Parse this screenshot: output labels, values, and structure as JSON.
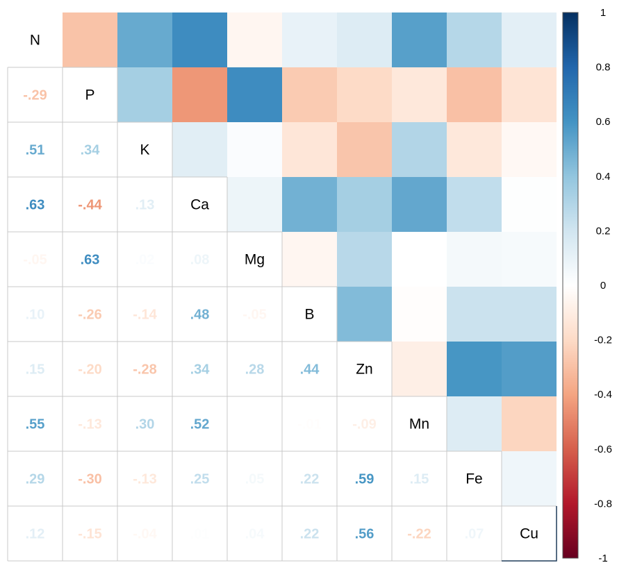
{
  "chart_data": {
    "type": "heatmap",
    "title": "",
    "variables": [
      "N",
      "P",
      "K",
      "Ca",
      "Mg",
      "B",
      "Zn",
      "Mn",
      "Fe",
      "Cu"
    ],
    "matrix": [
      [
        1.0,
        -0.29,
        0.51,
        0.63,
        -0.05,
        0.1,
        0.15,
        0.55,
        0.29,
        0.12
      ],
      [
        -0.29,
        1.0,
        0.34,
        -0.44,
        0.63,
        -0.26,
        -0.2,
        -0.13,
        -0.3,
        -0.15
      ],
      [
        0.51,
        0.34,
        1.0,
        0.13,
        0.02,
        -0.14,
        -0.28,
        0.3,
        -0.13,
        -0.04
      ],
      [
        0.63,
        -0.44,
        0.13,
        1.0,
        0.08,
        0.48,
        0.34,
        0.52,
        0.25,
        0.01
      ],
      [
        -0.05,
        0.63,
        0.02,
        0.08,
        1.0,
        -0.05,
        0.28,
        0.0,
        0.05,
        0.04
      ],
      [
        0.1,
        -0.26,
        -0.14,
        0.48,
        -0.05,
        1.0,
        0.44,
        -0.01,
        0.22,
        0.22
      ],
      [
        0.15,
        -0.2,
        -0.28,
        0.34,
        0.28,
        0.44,
        1.0,
        -0.09,
        0.59,
        0.56
      ],
      [
        0.55,
        -0.13,
        0.3,
        0.52,
        0.0,
        -0.01,
        -0.09,
        1.0,
        0.15,
        -0.22
      ],
      [
        0.29,
        -0.3,
        -0.13,
        0.25,
        0.05,
        0.22,
        0.59,
        0.15,
        1.0,
        0.07
      ],
      [
        0.12,
        -0.15,
        -0.04,
        0.01,
        0.04,
        0.22,
        0.56,
        -0.22,
        0.07,
        1.0
      ]
    ],
    "lower_triangle": "number",
    "upper_triangle": "shade",
    "diagonal": "variable-name",
    "color_scale": {
      "range": [
        -1,
        1
      ],
      "ticks": [
        "1",
        "0.8",
        "0.6",
        "0.4",
        "0.2",
        "0",
        "-0.2",
        "-0.4",
        "-0.6",
        "-0.8",
        "-1"
      ],
      "stops": [
        "#67001F",
        "#B2182B",
        "#D6604D",
        "#F4A582",
        "#FDDBC7",
        "#FFFFFF",
        "#D1E5F0",
        "#92C5DE",
        "#4393C3",
        "#2166AC",
        "#053061"
      ],
      "legend_position": "right"
    }
  }
}
